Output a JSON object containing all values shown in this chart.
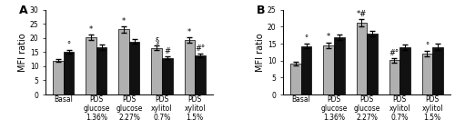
{
  "panel_A": {
    "title": "A",
    "ylabel": "MFI ratio",
    "ylim": [
      0,
      30
    ],
    "yticks": [
      0,
      5,
      10,
      15,
      20,
      25,
      30
    ],
    "categories": [
      "Basal",
      "PDS\nglucose\n1.36%",
      "PDS\nglucose\n2.27%",
      "PDS\nxylitol\n0.7%",
      "PDS\nxylitol\n1.5%"
    ],
    "gray_values": [
      12.0,
      20.3,
      23.1,
      16.5,
      19.2
    ],
    "black_values": [
      15.1,
      16.8,
      18.7,
      13.0,
      13.8
    ],
    "gray_errors": [
      0.5,
      0.9,
      1.1,
      0.8,
      1.0
    ],
    "black_errors": [
      0.7,
      0.9,
      0.8,
      0.6,
      0.7
    ],
    "gray_ann": [
      "",
      "*",
      "*",
      "§",
      "*"
    ],
    "black_ann": [
      "°",
      "",
      "",
      "#",
      "#°"
    ]
  },
  "panel_B": {
    "title": "B",
    "ylabel": "MFI ratio",
    "ylim": [
      0,
      25
    ],
    "yticks": [
      0,
      5,
      10,
      15,
      20,
      25
    ],
    "categories": [
      "Basal",
      "PDS\nglucose\n1.36%",
      "PDS\nglucose\n2.27%",
      "PDS\nxylitol\n0.7%",
      "PDS\nxylitol\n1.5%"
    ],
    "gray_values": [
      9.2,
      14.5,
      21.2,
      10.1,
      12.0
    ],
    "black_values": [
      14.3,
      16.9,
      18.0,
      14.0,
      14.0
    ],
    "gray_errors": [
      0.5,
      0.9,
      1.0,
      0.7,
      0.8
    ],
    "black_errors": [
      0.7,
      0.9,
      0.8,
      0.8,
      0.9
    ],
    "gray_ann": [
      "",
      "*",
      "*#",
      "#°",
      "°"
    ],
    "black_ann": [
      "°",
      "",
      "",
      "",
      ""
    ]
  },
  "bar_width": 0.32,
  "gray_color": "#B0B0B0",
  "black_color": "#111111",
  "error_capsize": 2,
  "ann_fontsize": 6,
  "tick_fontsize": 5.5,
  "label_fontsize": 7,
  "title_fontsize": 9,
  "title_fontweight": "bold"
}
